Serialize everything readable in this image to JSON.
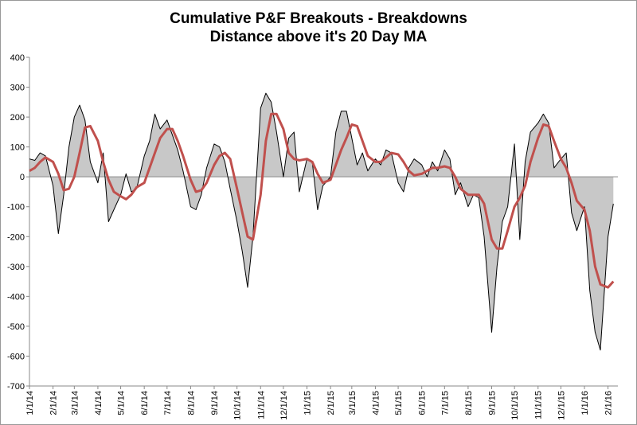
{
  "chart_data": {
    "type": "line",
    "title": "Cumulative P&F Breakouts - Breakdowns",
    "subtitle": "Distance above it's 20 Day MA",
    "x": [
      "1/1/14",
      "1/8/14",
      "1/15/14",
      "1/22/14",
      "2/1/14",
      "2/8/14",
      "2/15/14",
      "2/22/14",
      "3/1/14",
      "3/8/14",
      "3/15/14",
      "3/22/14",
      "4/1/14",
      "4/8/14",
      "4/15/14",
      "4/22/14",
      "5/1/14",
      "5/8/14",
      "5/15/14",
      "5/22/14",
      "6/1/14",
      "6/8/14",
      "6/15/14",
      "6/22/14",
      "7/1/14",
      "7/8/14",
      "7/15/14",
      "7/22/14",
      "8/1/14",
      "8/8/14",
      "8/15/14",
      "8/22/14",
      "9/1/14",
      "9/8/14",
      "9/15/14",
      "9/22/14",
      "10/1/14",
      "10/8/14",
      "10/15/14",
      "10/22/14",
      "11/1/14",
      "11/8/14",
      "11/15/14",
      "11/22/14",
      "12/1/14",
      "12/8/14",
      "12/15/14",
      "12/22/14",
      "1/1/15",
      "1/8/15",
      "1/15/15",
      "1/22/15",
      "2/1/15",
      "2/8/15",
      "2/15/15",
      "2/22/15",
      "3/1/15",
      "3/8/15",
      "3/15/15",
      "3/22/15",
      "4/1/15",
      "4/8/15",
      "4/15/15",
      "4/22/15",
      "5/1/15",
      "5/8/15",
      "5/15/15",
      "5/22/15",
      "6/1/15",
      "6/8/15",
      "6/15/15",
      "6/22/15",
      "7/1/15",
      "7/8/15",
      "7/15/15",
      "7/22/15",
      "8/1/15",
      "8/8/15",
      "8/15/15",
      "8/22/15",
      "9/1/15",
      "9/8/15",
      "9/15/15",
      "9/22/15",
      "10/1/15",
      "10/8/15",
      "10/15/15",
      "10/22/15",
      "11/1/15",
      "11/8/15",
      "11/15/15",
      "11/22/15",
      "12/1/15",
      "12/8/15",
      "12/15/15",
      "12/22/15",
      "1/1/16",
      "1/8/16",
      "1/15/16",
      "1/22/16",
      "2/1/16",
      "2/8/16"
    ],
    "series": [
      {
        "name": "Breakouts - Breakdowns",
        "color": "#000000",
        "fill": "#c8c8c8",
        "values": [
          60,
          55,
          80,
          70,
          -30,
          -190,
          -60,
          100,
          200,
          240,
          190,
          50,
          -20,
          80,
          -150,
          -110,
          -60,
          10,
          -50,
          -40,
          70,
          120,
          210,
          160,
          190,
          140,
          90,
          20,
          -100,
          -110,
          -60,
          30,
          110,
          100,
          50,
          -40,
          -150,
          -250,
          -370,
          -200,
          230,
          280,
          250,
          150,
          0,
          130,
          150,
          -50,
          60,
          50,
          -110,
          -30,
          0,
          150,
          220,
          220,
          130,
          40,
          80,
          20,
          60,
          40,
          90,
          80,
          -20,
          -50,
          30,
          60,
          40,
          0,
          50,
          20,
          90,
          60,
          -60,
          -20,
          -100,
          -60,
          -70,
          -200,
          -520,
          -300,
          -150,
          -100,
          110,
          -210,
          50,
          150,
          180,
          210,
          180,
          30,
          60,
          80,
          -120,
          -180,
          -100,
          -380,
          -520,
          -580,
          -200,
          -90
        ]
      },
      {
        "name": "20 Day MA",
        "color": "#c0504d",
        "values": [
          20,
          30,
          50,
          65,
          50,
          10,
          -45,
          -40,
          0,
          80,
          165,
          170,
          120,
          50,
          -10,
          -50,
          -65,
          -75,
          -60,
          -35,
          -20,
          30,
          80,
          130,
          160,
          160,
          120,
          70,
          -10,
          -50,
          -45,
          -20,
          40,
          70,
          80,
          60,
          -40,
          -120,
          -200,
          -210,
          -60,
          120,
          210,
          210,
          160,
          80,
          60,
          55,
          60,
          50,
          10,
          -20,
          -10,
          40,
          90,
          130,
          175,
          170,
          120,
          70,
          50,
          50,
          65,
          80,
          75,
          50,
          20,
          5,
          10,
          20,
          30,
          30,
          35,
          30,
          0,
          -40,
          -60,
          -60,
          -60,
          -90,
          -210,
          -240,
          -240,
          -180,
          -100,
          -70,
          -30,
          50,
          130,
          175,
          170,
          120,
          60,
          30,
          -20,
          -80,
          -110,
          -180,
          -300,
          -360,
          -370,
          -350
        ]
      }
    ],
    "xlim": [
      "1/1/14",
      "2/14/16"
    ],
    "xticks": [
      "1/1/14",
      "2/1/14",
      "3/1/14",
      "4/1/14",
      "5/1/14",
      "6/1/14",
      "7/1/14",
      "8/1/14",
      "9/1/14",
      "10/1/14",
      "11/1/14",
      "12/1/14",
      "1/1/15",
      "2/1/15",
      "3/1/15",
      "4/1/15",
      "5/1/15",
      "6/1/15",
      "7/1/15",
      "8/1/15",
      "9/1/15",
      "10/1/15",
      "11/1/15",
      "12/1/15",
      "1/1/16",
      "2/1/16"
    ],
    "ylim": [
      -700,
      400
    ],
    "yticks": [
      -700,
      -600,
      -500,
      -400,
      -300,
      -200,
      -100,
      0,
      100,
      200,
      300,
      400
    ]
  }
}
